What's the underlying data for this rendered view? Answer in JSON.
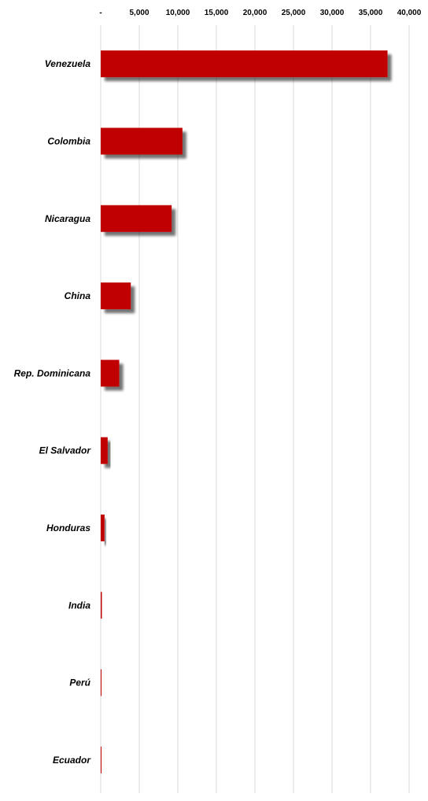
{
  "chart_data": {
    "type": "bar",
    "orientation": "horizontal",
    "title": "",
    "xlabel": "",
    "ylabel": "",
    "categories": [
      "Venezuela",
      "Colombia",
      "Nicaragua",
      "China",
      "Rep. Dominicana",
      "El Salvador",
      "Honduras",
      "India",
      "Perú",
      "Ecuador"
    ],
    "values": [
      37200,
      10600,
      9200,
      3900,
      2400,
      900,
      500,
      150,
      100,
      80
    ],
    "xlim": [
      0,
      40000
    ],
    "ticks": [
      0,
      5000,
      10000,
      15000,
      20000,
      25000,
      30000,
      35000,
      40000
    ],
    "tick_labels": [
      "-",
      "5,000",
      "10,000",
      "15,000",
      "20,000",
      "25,000",
      "30,000",
      "35,000",
      "40,000"
    ],
    "x_axis_position": "top",
    "grid": true,
    "legend": "none",
    "bar_shadow": true,
    "colors": {
      "bar": "#c00000",
      "shadow": "#8c8c8c",
      "grid": "#d9d9d9"
    }
  }
}
